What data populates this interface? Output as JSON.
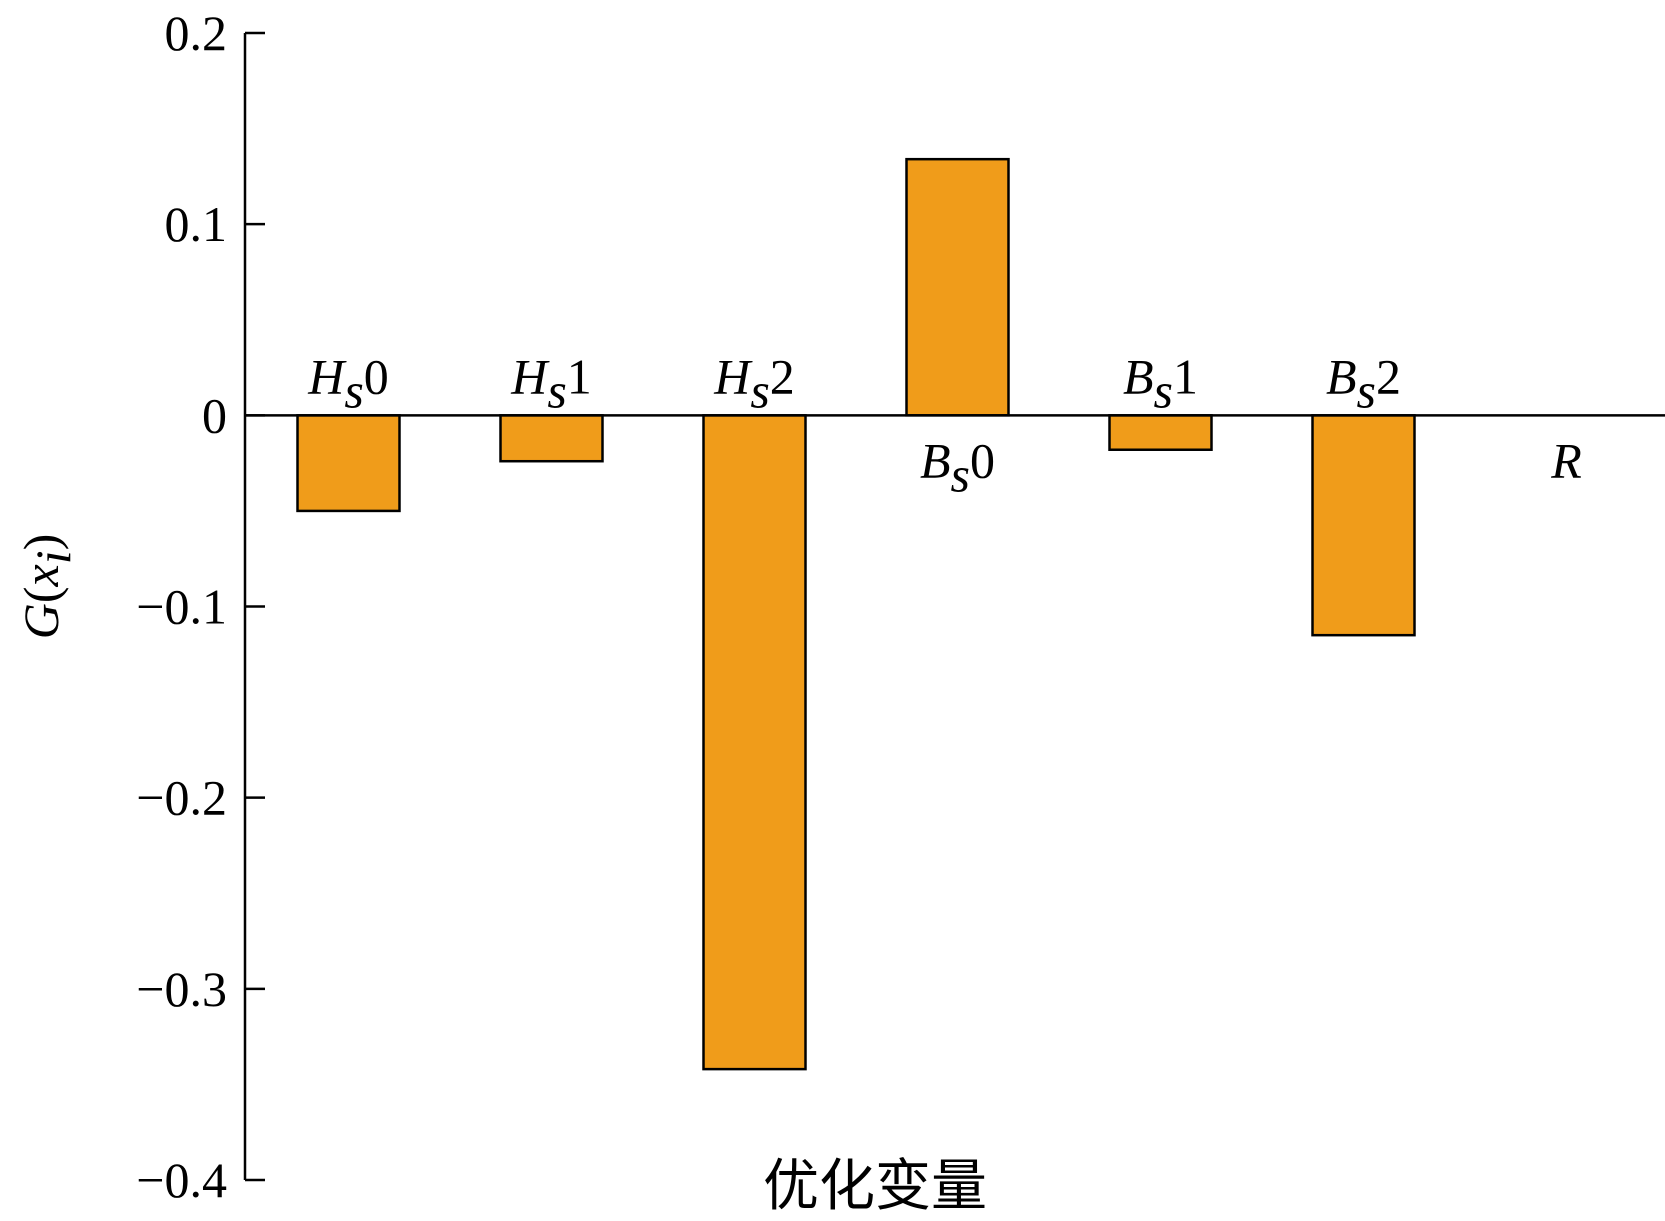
{
  "chart_data": {
    "type": "bar",
    "categories": [
      "Hs0",
      "Hs1",
      "Hs2",
      "Bs0",
      "Bs1",
      "Bs2",
      "R"
    ],
    "values": [
      -0.05,
      -0.024,
      -0.342,
      0.134,
      -0.018,
      -0.115,
      0
    ],
    "color": "#f09c1a",
    "x_label": "优化变量",
    "y_label": "G(xi)",
    "ylim": [
      -0.4,
      0.2
    ],
    "yticks": [
      {
        "value": -0.4,
        "label": "−0.4"
      },
      {
        "value": -0.3,
        "label": "−0.3"
      },
      {
        "value": -0.2,
        "label": "−0.2"
      },
      {
        "value": -0.1,
        "label": "−0.1"
      },
      0,
      0.1,
      0.2
    ]
  }
}
